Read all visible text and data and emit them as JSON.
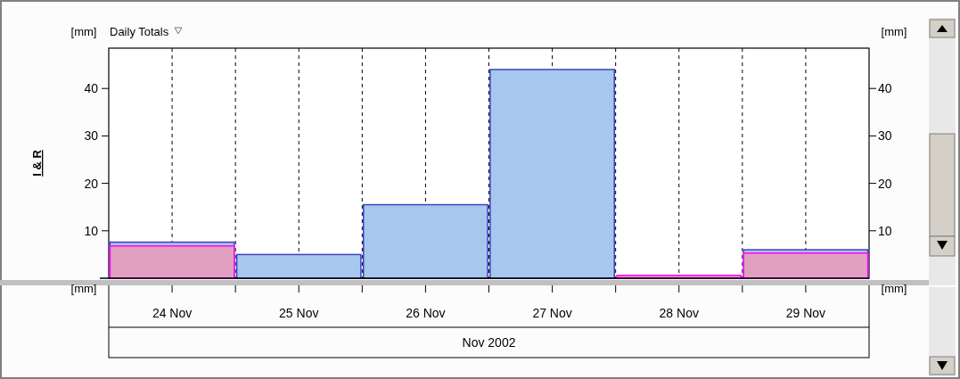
{
  "chart_data": {
    "type": "bar",
    "title": "Daily Totals",
    "ylabel": "I & R",
    "y2label": "[mm]",
    "xlabel": "Nov 2002",
    "annotations": [
      "[mm]",
      "[mm]",
      "[mm]"
    ],
    "categories": [
      "24 Nov",
      "25 Nov",
      "26 Nov",
      "27 Nov",
      "28 Nov",
      "29 Nov"
    ],
    "series": [
      {
        "color": "#a6c8ee",
        "values": [
          7.6,
          5.0,
          15.5,
          44.0,
          null,
          6.0
        ]
      },
      {
        "color": "#e0a0c0",
        "values": [
          6.8,
          null,
          null,
          null,
          0.6,
          5.3
        ]
      }
    ],
    "ylim": [
      0,
      48.5
    ],
    "yticks": [
      10,
      20,
      30,
      40
    ],
    "y2lim": [
      0,
      48.5
    ],
    "y2ticks": [
      10,
      20,
      30,
      40
    ],
    "grid": "x"
  }
}
